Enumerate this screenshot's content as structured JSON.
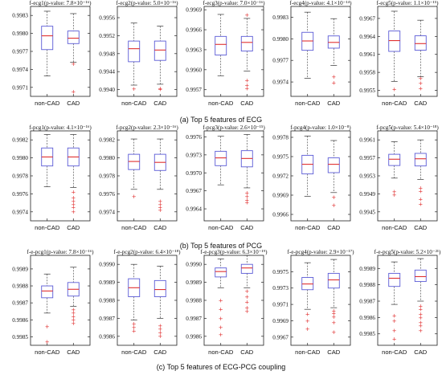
{
  "captions": {
    "row_a": "(a) Top 5 features of ECG",
    "row_b": "(b) Top 5 features of PCG",
    "row_c": "(c) Top 5 features of ECG-PCG coupling"
  },
  "colors": {
    "box": "#5b5bd6",
    "median": "#e03030",
    "whisker": "#333333",
    "outlier": "#e03030",
    "axis": "#222222"
  },
  "chart_data": [
    {
      "type": "box",
      "title": "f-ecg1(p-value: 7.8×10⁻¹⁶)",
      "categories": [
        "non-CAD",
        "CAD"
      ],
      "yticks": [
        "0.9971",
        "0.9974",
        "0.9977",
        "0.9980",
        "0.9983"
      ],
      "ylim": [
        0.99695,
        0.99845
      ],
      "series": [
        {
          "name": "non-CAD",
          "whisker_low": 0.99729,
          "q1": 0.99773,
          "median": 0.99796,
          "q3": 0.99812,
          "whisker_high": 0.99837,
          "outliers": []
        },
        {
          "name": "CAD",
          "whisker_low": 0.99752,
          "q1": 0.99783,
          "median": 0.99792,
          "q3": 0.99804,
          "whisker_high": 0.99833,
          "outliers": [
            0.99749,
            0.99703
          ]
        }
      ]
    },
    {
      "type": "box",
      "title": "f-ecg2(p-value: 5.0×10⁻¹⁶)",
      "categories": [
        "non-CAD",
        "CAD"
      ],
      "yticks": [
        "0.9940",
        "0.9944",
        "0.9948",
        "0.9952",
        "0.9956"
      ],
      "ylim": [
        0.99385,
        0.99585
      ],
      "series": [
        {
          "name": "non-CAD",
          "whisker_low": 0.9941,
          "q1": 0.99462,
          "median": 0.99491,
          "q3": 0.99508,
          "whisker_high": 0.99548,
          "outliers": [
            0.99402
          ]
        },
        {
          "name": "CAD",
          "whisker_low": 0.99412,
          "q1": 0.99465,
          "median": 0.99488,
          "q3": 0.99508,
          "whisker_high": 0.99541,
          "outliers": [
            0.99403,
            0.99401
          ]
        }
      ]
    },
    {
      "type": "box",
      "title": "f-ecg3(p-value: 7.0×10⁻¹⁶)",
      "categories": [
        "non-CAD",
        "CAD"
      ],
      "yticks": [
        "0.9957",
        "0.9960",
        "0.9963",
        "0.9966",
        "0.9969"
      ],
      "ylim": [
        0.9956,
        0.99695
      ],
      "series": [
        {
          "name": "non-CAD",
          "whisker_low": 0.99591,
          "q1": 0.99622,
          "median": 0.99638,
          "q3": 0.9965,
          "whisker_high": 0.99683,
          "outliers": []
        },
        {
          "name": "CAD",
          "whisker_low": 0.99598,
          "q1": 0.99628,
          "median": 0.99641,
          "q3": 0.9965,
          "whisker_high": 0.99677,
          "outliers": [
            0.99682,
            0.99584,
            0.99577,
            0.99572
          ]
        }
      ]
    },
    {
      "type": "box",
      "title": "f-ecg4(p-value: 4.1×10⁻¹⁴)",
      "categories": [
        "non-CAD",
        "CAD"
      ],
      "yticks": [
        "0.9974",
        "0.9977",
        "0.9980",
        "0.9983"
      ],
      "ylim": [
        0.9972,
        0.99845
      ],
      "series": [
        {
          "name": "non-CAD",
          "whisker_low": 0.99745,
          "q1": 0.99784,
          "median": 0.99797,
          "q3": 0.99809,
          "whisker_high": 0.99837,
          "outliers": []
        },
        {
          "name": "CAD",
          "whisker_low": 0.99763,
          "q1": 0.99787,
          "median": 0.99795,
          "q3": 0.99804,
          "whisker_high": 0.99828,
          "outliers": [
            0.99747,
            0.99739
          ]
        }
      ]
    },
    {
      "type": "box",
      "title": "f-ecg5(p-value: 1.1×10⁻¹⁵)",
      "categories": [
        "non-CAD",
        "CAD"
      ],
      "yticks": [
        "0.9955",
        "0.9958",
        "0.9961",
        "0.9964",
        "0.9967"
      ],
      "ylim": [
        0.9954,
        0.9969
      ],
      "series": [
        {
          "name": "non-CAD",
          "whisker_low": 0.99565,
          "q1": 0.99615,
          "median": 0.99633,
          "q3": 0.99649,
          "whisker_high": 0.99682,
          "outliers": [
            0.99552
          ]
        },
        {
          "name": "CAD",
          "whisker_low": 0.99573,
          "q1": 0.99617,
          "median": 0.99628,
          "q3": 0.99641,
          "whisker_high": 0.99667,
          "outliers": [
            0.9957,
            0.99562,
            0.99553
          ]
        }
      ]
    },
    {
      "type": "box",
      "title": "f-pcg1(p-value: 4.1×10⁻¹⁶)",
      "categories": [
        "non-CAD",
        "CAD"
      ],
      "yticks": [
        "0.9974",
        "0.9976",
        "0.9978",
        "0.9980",
        "0.9982"
      ],
      "ylim": [
        0.9973,
        0.9983
      ],
      "series": [
        {
          "name": "non-CAD",
          "whisker_low": 0.99768,
          "q1": 0.99791,
          "median": 0.99801,
          "q3": 0.99811,
          "whisker_high": 0.99826,
          "outliers": []
        },
        {
          "name": "CAD",
          "whisker_low": 0.99767,
          "q1": 0.99791,
          "median": 0.99801,
          "q3": 0.99811,
          "whisker_high": 0.99826,
          "outliers": [
            0.99762,
            0.99756,
            0.99752,
            0.99748,
            0.99745,
            0.9974
          ]
        }
      ]
    },
    {
      "type": "box",
      "title": "f-pcg2(p-value: 2.3×10⁻¹⁶)",
      "categories": [
        "non-CAD",
        "CAD"
      ],
      "yticks": [
        "0.9974",
        "0.9976",
        "0.9978",
        "0.9980",
        "0.9982"
      ],
      "ylim": [
        0.9973,
        0.9983
      ],
      "series": [
        {
          "name": "non-CAD",
          "whisker_low": 0.99765,
          "q1": 0.99787,
          "median": 0.99796,
          "q3": 0.99804,
          "whisker_high": 0.99821,
          "outliers": [
            0.99757
          ]
        },
        {
          "name": "CAD",
          "whisker_low": 0.99765,
          "q1": 0.99786,
          "median": 0.99795,
          "q3": 0.99804,
          "whisker_high": 0.99821,
          "outliers": [
            0.99752,
            0.99748,
            0.99745,
            0.99742
          ]
        }
      ]
    },
    {
      "type": "box",
      "title": "f-pcg3(p-value: 2.6×10⁻¹⁵)",
      "categories": [
        "non-CAD",
        "CAD"
      ],
      "yticks": [
        "0.9964",
        "0.9967",
        "0.9970",
        "0.9973",
        "0.9976"
      ],
      "ylim": [
        0.9962,
        0.9977
      ],
      "series": [
        {
          "name": "non-CAD",
          "whisker_low": 0.9968,
          "q1": 0.99712,
          "median": 0.99725,
          "q3": 0.99736,
          "whisker_high": 0.99761,
          "outliers": []
        },
        {
          "name": "CAD",
          "whisker_low": 0.99675,
          "q1": 0.9971,
          "median": 0.99724,
          "q3": 0.99737,
          "whisker_high": 0.99764,
          "outliers": [
            0.99667,
            0.99661,
            0.99655,
            0.99651
          ]
        }
      ]
    },
    {
      "type": "box",
      "title": "f-pcg4(p-value: 1.0×10⁻⁸)",
      "categories": [
        "non-CAD",
        "CAD"
      ],
      "yticks": [
        "0.9966",
        "0.9969",
        "0.9972",
        "0.9975",
        "0.9978"
      ],
      "ylim": [
        0.9965,
        0.9979
      ],
      "series": [
        {
          "name": "non-CAD",
          "whisker_low": 0.99688,
          "q1": 0.99723,
          "median": 0.99738,
          "q3": 0.99752,
          "whisker_high": 0.99782,
          "outliers": []
        },
        {
          "name": "CAD",
          "whisker_low": 0.99694,
          "q1": 0.99725,
          "median": 0.99738,
          "q3": 0.99748,
          "whisker_high": 0.99775,
          "outliers": [
            0.99687,
            0.99674
          ]
        }
      ]
    },
    {
      "type": "box",
      "title": "f-pcg5(p-value: 5.4×10⁻¹⁸)",
      "categories": [
        "non-CAD",
        "CAD"
      ],
      "yticks": [
        "0.9945",
        "0.9949",
        "0.9953",
        "0.9957",
        "0.9961"
      ],
      "ylim": [
        0.9943,
        0.9963
      ],
      "series": [
        {
          "name": "non-CAD",
          "whisker_low": 0.99525,
          "q1": 0.99553,
          "median": 0.99567,
          "q3": 0.99578,
          "whisker_high": 0.99606,
          "outliers": [
            0.99495,
            0.99488
          ]
        },
        {
          "name": "CAD",
          "whisker_low": 0.99522,
          "q1": 0.99552,
          "median": 0.99568,
          "q3": 0.9958,
          "whisker_high": 0.9961,
          "outliers": [
            0.99503,
            0.99496,
            0.99478,
            0.99467
          ]
        }
      ]
    },
    {
      "type": "box",
      "title": "f-e-pcg1(p-value: 7.8×10⁻¹⁶)",
      "categories": [
        "non-CAD",
        "CAD"
      ],
      "yticks": [
        "0.9985",
        "0.9986",
        "0.9987",
        "0.9988",
        "0.9989"
      ],
      "ylim": [
        0.99845,
        0.99898
      ],
      "series": [
        {
          "name": "non-CAD",
          "whisker_low": 0.99864,
          "q1": 0.99873,
          "median": 0.99877,
          "q3": 0.9988,
          "whisker_high": 0.99887,
          "outliers": [
            0.99856,
            0.99847
          ]
        },
        {
          "name": "CAD",
          "whisker_low": 0.99868,
          "q1": 0.99874,
          "median": 0.99878,
          "q3": 0.99882,
          "whisker_high": 0.99891,
          "outliers": [
            0.99866,
            0.99864,
            0.99862,
            0.9986,
            0.99858
          ]
        }
      ]
    },
    {
      "type": "box",
      "title": "f-e-pcg2(p-value: 6.4×10⁻¹⁸)",
      "categories": [
        "non-CAD",
        "CAD"
      ],
      "yticks": [
        "0.9986",
        "0.9987",
        "0.9988",
        "0.9989",
        "0.9990"
      ],
      "ylim": [
        0.99855,
        0.99905
      ],
      "series": [
        {
          "name": "non-CAD",
          "whisker_low": 0.99869,
          "q1": 0.99882,
          "median": 0.99887,
          "q3": 0.99892,
          "whisker_high": 0.999,
          "outliers": [
            0.99867,
            0.99865,
            0.99863
          ]
        },
        {
          "name": "CAD",
          "whisker_low": 0.9987,
          "q1": 0.99882,
          "median": 0.99886,
          "q3": 0.99891,
          "whisker_high": 0.99899,
          "outliers": [
            0.99866,
            0.99864,
            0.99862,
            0.9986
          ]
        }
      ]
    },
    {
      "type": "box",
      "title": "f-e-pcg3(p-value: 6.3×10⁻¹⁹)",
      "categories": [
        "non-CAD",
        "CAD"
      ],
      "yticks": [
        "0.9986",
        "0.9987",
        "0.9988",
        "0.9989",
        "0.9990"
      ],
      "ylim": [
        0.99855,
        0.99905
      ],
      "series": [
        {
          "name": "non-CAD",
          "whisker_low": 0.99887,
          "q1": 0.99893,
          "median": 0.99896,
          "q3": 0.99898,
          "whisker_high": 0.99903,
          "outliers": [
            0.9988,
            0.99875,
            0.9987,
            0.99865,
            0.99861
          ]
        },
        {
          "name": "CAD",
          "whisker_low": 0.99887,
          "q1": 0.99895,
          "median": 0.99898,
          "q3": 0.999,
          "whisker_high": 0.99905,
          "outliers": [
            0.99885,
            0.99882,
            0.99879,
            0.99876,
            0.99874
          ]
        }
      ]
    },
    {
      "type": "box",
      "title": "f-e-pcg4(p-value: 2.9×10⁻¹⁷)",
      "categories": [
        "non-CAD",
        "CAD"
      ],
      "yticks": [
        "0.9967",
        "0.9969",
        "0.9971",
        "0.9973",
        "0.9975"
      ],
      "ylim": [
        0.9966,
        0.9977
      ],
      "series": [
        {
          "name": "non-CAD",
          "whisker_low": 0.99704,
          "q1": 0.99728,
          "median": 0.99735,
          "q3": 0.99743,
          "whisker_high": 0.99761,
          "outliers": [
            0.99698,
            0.9969,
            0.9968
          ]
        },
        {
          "name": "CAD",
          "whisker_low": 0.99706,
          "q1": 0.9973,
          "median": 0.9974,
          "q3": 0.99748,
          "whisker_high": 0.99765,
          "outliers": [
            0.99702,
            0.99699,
            0.99695,
            0.99688,
            0.99676
          ]
        }
      ]
    },
    {
      "type": "box",
      "title": "f-e-pcg5(p-value: 5.2×10⁻²¹)",
      "categories": [
        "non-CAD",
        "CAD"
      ],
      "yticks": [
        "0.9985",
        "0.9986",
        "0.9987",
        "0.9988",
        "0.9989"
      ],
      "ylim": [
        0.99843,
        0.99898
      ],
      "series": [
        {
          "name": "non-CAD",
          "whisker_low": 0.99868,
          "q1": 0.99879,
          "median": 0.99884,
          "q3": 0.99887,
          "whisker_high": 0.99894,
          "outliers": [
            0.99861,
            0.99858,
            0.99852,
            0.99847
          ]
        },
        {
          "name": "CAD",
          "whisker_low": 0.9987,
          "q1": 0.99882,
          "median": 0.99885,
          "q3": 0.99889,
          "whisker_high": 0.99896,
          "outliers": [
            0.99867,
            0.99865,
            0.99862,
            0.9986,
            0.99857,
            0.99855,
            0.99852
          ]
        }
      ]
    }
  ]
}
